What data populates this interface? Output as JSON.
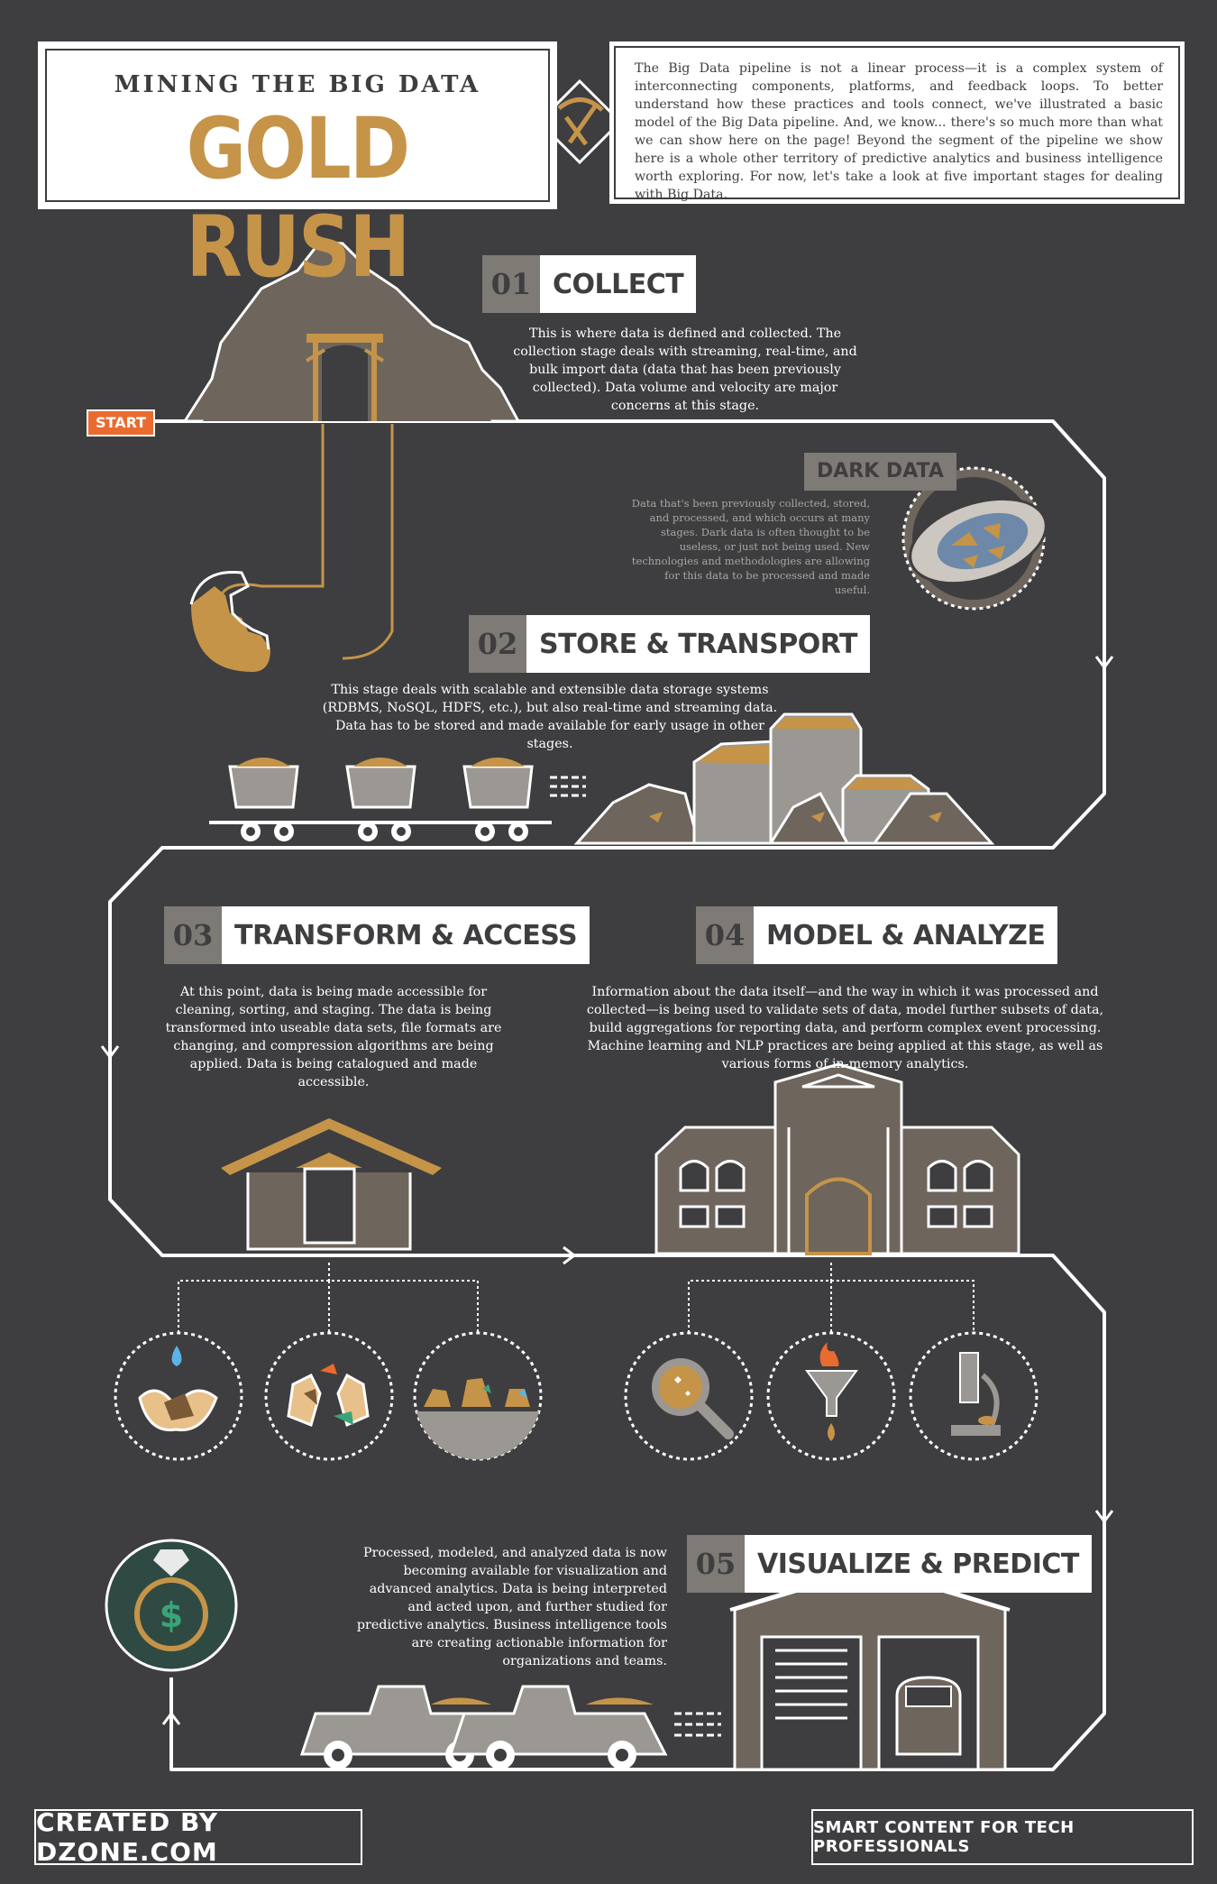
{
  "header": {
    "subtitle": "MINING THE BIG DATA",
    "title": "GOLD RUSH",
    "intro": "The Big Data pipeline is not a linear process—it is a complex system of interconnecting components, platforms, and feedback loops. To better understand how these practices and tools connect, we've illustrated a basic model of the Big Data pipeline. And, we know... there's so much more than what we can show here on the page! Beyond the segment of the pipeline we show here is a whole other territory of predictive analytics and business intelligence worth exploring. For now, let's take a look at five important stages for dealing with Big Data."
  },
  "start_label": "START",
  "stages": [
    {
      "num": "01",
      "title": "COLLECT",
      "desc": "This is where data is defined and collected. The collection stage deals with streaming, real-time, and bulk import data (data that has been previously collected). Data volume and velocity are major concerns at this stage."
    },
    {
      "num": "02",
      "title": "STORE & TRANSPORT",
      "desc": "This stage deals with scalable and extensible data storage systems (RDBMS, NoSQL, HDFS, etc.), but also real-time and streaming data. Data has to be stored and made available for early usage in other stages."
    },
    {
      "num": "03",
      "title": "TRANSFORM & ACCESS",
      "desc": "At this point, data is being made accessible for cleaning, sorting, and staging. The data is being transformed into useable data sets, file formats are changing, and compression algorithms are being applied. Data is being catalogued and made accessible."
    },
    {
      "num": "04",
      "title": "MODEL & ANALYZE",
      "desc": "Information about the data itself—and the way in which it was processed and collected—is being used to validate sets of data, model further subsets of data, build aggregations for reporting data, and perform complex event processing. Machine learning and NLP practices are being applied at this stage, as well as various forms of in-memory analytics."
    },
    {
      "num": "05",
      "title": "VISUALIZE & PREDICT",
      "desc": "Processed, modeled, and analyzed data is now becoming available for visualization and advanced analytics. Data is being interpreted and acted upon, and further studied for predictive analytics. Business intelligence tools are creating actionable information for organizations and teams."
    }
  ],
  "dark_data": {
    "title": "DARK DATA",
    "desc": "Data that's been previously collected, stored, and processed, and which occurs at many stages. Dark data is often thought to be useless, or just not being used. New technologies and methodologies are allowing for this data to be processed and made useful."
  },
  "footer": {
    "left": "CREATED BY DZONE.COM",
    "right": "SMART CONTENT FOR TECH PROFESSIONALS"
  },
  "colors": {
    "background": "#3e3e40",
    "gold": "#c59449",
    "start": "#ea6b2f",
    "stone": "#6e655d",
    "grey_panel": "#7e7a75"
  }
}
